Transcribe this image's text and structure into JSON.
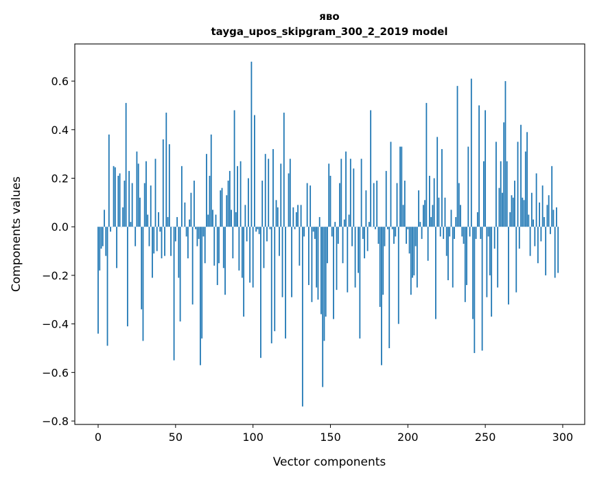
{
  "chart_data": {
    "type": "bar",
    "title": "яво",
    "subtitle": "tayga_upos_skipgram_300_2_2019 model",
    "xlabel": "Vector components",
    "ylabel": "Components values",
    "xlim": [
      -15.07,
      314.2
    ],
    "ylim": [
      -0.814,
      0.753
    ],
    "xticks": [
      0,
      50,
      100,
      150,
      200,
      250,
      300
    ],
    "xtick_labels": [
      "0",
      "50",
      "100",
      "150",
      "200",
      "250",
      "300"
    ],
    "yticks": [
      -0.8,
      -0.6,
      -0.4,
      -0.2,
      0.0,
      0.2,
      0.4,
      0.6
    ],
    "ytick_labels": [
      "−0.8",
      "−0.6",
      "−0.4",
      "−0.2",
      "0.0",
      "0.2",
      "0.4",
      "0.6"
    ],
    "bar_color": "#1f77b4",
    "grid": false,
    "values": [
      -0.44,
      -0.18,
      -0.09,
      -0.08,
      0.07,
      -0.12,
      -0.49,
      0.38,
      -0.02,
      0.0,
      0.25,
      0.245,
      -0.17,
      0.21,
      0.22,
      0.0,
      0.08,
      0.19,
      0.51,
      -0.41,
      0.23,
      0.02,
      0.18,
      0.0,
      -0.08,
      0.31,
      0.26,
      0.12,
      -0.34,
      -0.47,
      0.18,
      0.27,
      0.05,
      -0.08,
      0.17,
      -0.21,
      -0.11,
      0.28,
      -0.1,
      0.06,
      -0.02,
      -0.13,
      0.36,
      -0.12,
      0.47,
      0.04,
      0.34,
      -0.12,
      0.0,
      -0.55,
      -0.06,
      0.04,
      -0.21,
      -0.39,
      0.25,
      0.0,
      0.1,
      -0.04,
      -0.13,
      0.03,
      0.14,
      -0.32,
      0.19,
      -0.01,
      -0.08,
      -0.05,
      -0.57,
      -0.46,
      -0.04,
      -0.15,
      0.3,
      0.05,
      0.21,
      0.38,
      0.07,
      -0.16,
      0.05,
      -0.24,
      -0.15,
      0.15,
      0.16,
      -0.17,
      -0.28,
      0.13,
      0.19,
      0.23,
      0.07,
      -0.13,
      0.48,
      0.06,
      0.25,
      -0.18,
      0.27,
      -0.21,
      -0.37,
      0.09,
      -0.06,
      0.2,
      -0.23,
      0.68,
      -0.25,
      0.46,
      -0.02,
      -0.01,
      -0.03,
      -0.54,
      0.19,
      -0.17,
      0.3,
      -0.06,
      0.28,
      -0.01,
      -0.48,
      0.32,
      -0.43,
      0.11,
      0.08,
      -0.12,
      0.26,
      -0.29,
      0.47,
      -0.46,
      0.0,
      0.22,
      0.28,
      -0.29,
      0.08,
      -0.01,
      0.06,
      0.09,
      -0.16,
      0.09,
      -0.74,
      -0.04,
      0.0,
      0.18,
      -0.24,
      0.17,
      -0.31,
      -0.02,
      -0.05,
      -0.25,
      -0.3,
      0.04,
      -0.36,
      -0.66,
      -0.47,
      -0.37,
      -0.15,
      0.26,
      0.21,
      -0.04,
      -0.38,
      0.02,
      -0.26,
      -0.07,
      0.18,
      0.28,
      -0.15,
      0.03,
      0.31,
      -0.27,
      0.05,
      0.28,
      -0.08,
      0.24,
      -0.25,
      0.0,
      -0.19,
      -0.46,
      0.28,
      -0.05,
      -0.13,
      0.15,
      -0.1,
      0.02,
      0.48,
      0.0,
      0.18,
      -0.01,
      0.19,
      -0.07,
      -0.33,
      -0.57,
      -0.28,
      -0.08,
      0.23,
      -0.01,
      -0.5,
      0.35,
      -0.01,
      -0.07,
      -0.04,
      0.18,
      -0.4,
      0.33,
      0.33,
      0.09,
      0.19,
      -0.07,
      -0.01,
      -0.11,
      -0.28,
      -0.21,
      -0.2,
      -0.08,
      -0.25,
      0.15,
      0.02,
      -0.05,
      0.09,
      0.11,
      0.51,
      -0.14,
      0.21,
      0.04,
      0.09,
      0.2,
      -0.38,
      0.37,
      0.12,
      -0.04,
      0.32,
      -0.05,
      0.12,
      -0.12,
      -0.22,
      -0.04,
      0.07,
      -0.25,
      -0.05,
      0.04,
      0.58,
      0.18,
      0.09,
      -0.04,
      -0.07,
      -0.31,
      -0.24,
      0.33,
      -0.04,
      0.61,
      -0.38,
      -0.52,
      -0.05,
      0.06,
      0.5,
      -0.05,
      -0.51,
      0.27,
      0.48,
      -0.29,
      -0.04,
      -0.2,
      -0.37,
      0.0,
      -0.09,
      0.35,
      -0.25,
      0.16,
      0.27,
      0.14,
      0.43,
      0.6,
      0.27,
      -0.32,
      0.06,
      0.13,
      0.12,
      0.19,
      -0.27,
      0.35,
      -0.09,
      0.42,
      0.12,
      0.11,
      0.31,
      0.39,
      0.05,
      -0.12,
      0.14,
      0.03,
      -0.08,
      0.22,
      -0.15,
      0.1,
      -0.06,
      0.17,
      0.04,
      -0.2,
      0.09,
      0.13,
      -0.03,
      0.25,
      0.07,
      -0.21,
      0.08,
      -0.19
    ]
  }
}
